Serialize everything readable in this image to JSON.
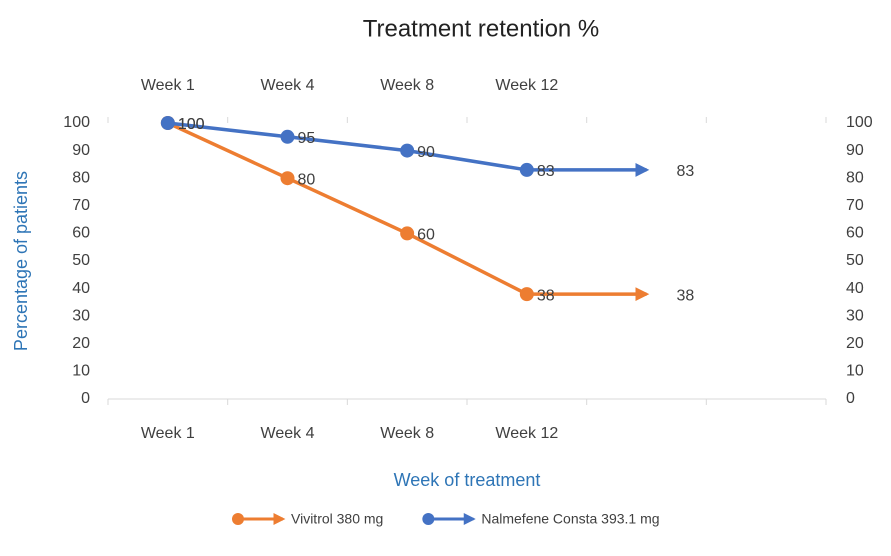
{
  "chart_data": {
    "type": "line",
    "title": "Treatment retention %",
    "categories": [
      "Week 1",
      "Week 4",
      "Week 8",
      "Week 12",
      null,
      null
    ],
    "series": [
      {
        "name": "Vivitrol 380 mg",
        "color": "#ed7d31",
        "values": [
          100,
          80,
          60,
          38,
          38,
          null
        ]
      },
      {
        "name": "Nalmefene Consta 393.1 mg",
        "color": "#4472c4",
        "values": [
          100,
          95,
          90,
          83,
          83,
          null
        ]
      }
    ],
    "xlabel": "Week of treatment",
    "ylabel": "Percentage of patients",
    "ylim": [
      0,
      100
    ],
    "yticks": [
      0,
      10,
      20,
      30,
      40,
      50,
      60,
      70,
      80,
      90,
      100
    ],
    "y2lim": [
      0,
      100
    ],
    "y2ticks": [
      0,
      10,
      20,
      30,
      40,
      50,
      60,
      70,
      80,
      90,
      100
    ],
    "grid": false,
    "legend": "bottom"
  }
}
